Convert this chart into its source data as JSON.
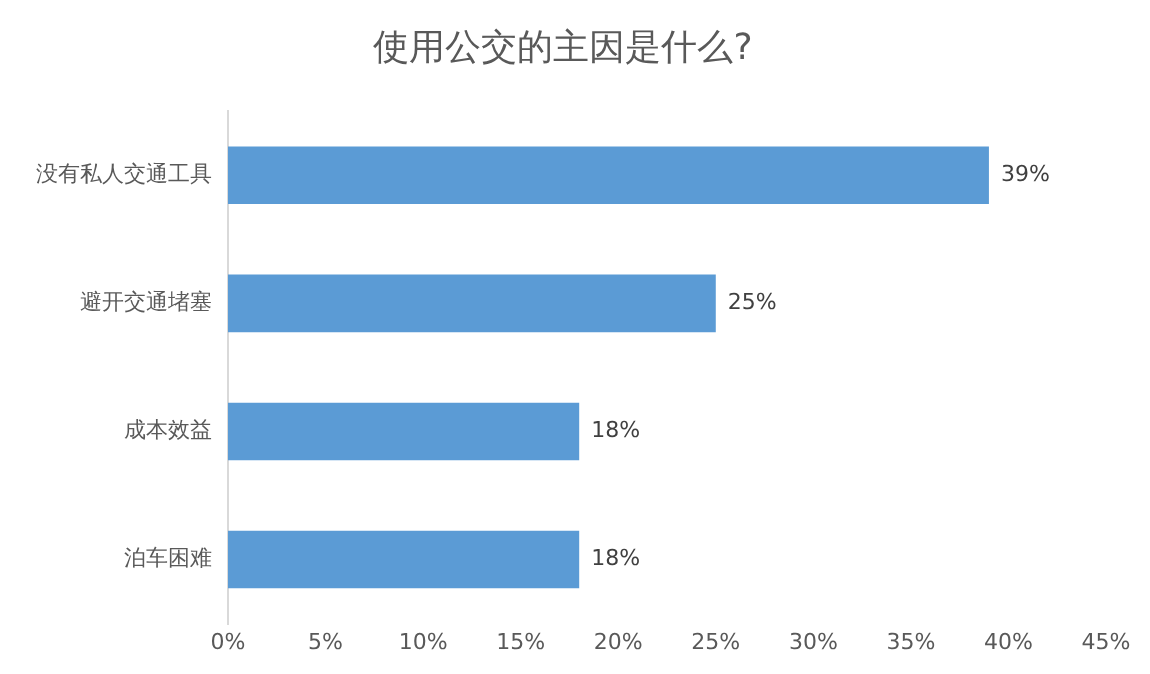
{
  "chart_data": {
    "type": "bar",
    "orientation": "horizontal",
    "title": "使用公交的主因是什么?",
    "categories": [
      "没有私人交通工具",
      "避开交通堵塞",
      "成本效益",
      "泊车困难"
    ],
    "values": [
      39,
      25,
      18,
      18
    ],
    "color": "#5b9bd5",
    "value_labels": [
      "39%",
      "25%",
      "18%",
      "18%"
    ],
    "xlim": [
      0,
      45
    ],
    "xticks": [
      {
        "value": 0,
        "label": "0%"
      },
      {
        "value": 5,
        "label": "5%"
      },
      {
        "value": 10,
        "label": "10%"
      },
      {
        "value": 15,
        "label": "15%"
      },
      {
        "value": 20,
        "label": "20%"
      },
      {
        "value": 25,
        "label": "25%"
      },
      {
        "value": 30,
        "label": "30%"
      },
      {
        "value": 35,
        "label": "35%"
      },
      {
        "value": 40,
        "label": "40%"
      },
      {
        "value": 45,
        "label": "45%"
      }
    ],
    "grid": false,
    "legend": false
  }
}
